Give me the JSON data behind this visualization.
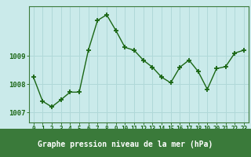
{
  "x": [
    0,
    1,
    2,
    3,
    4,
    5,
    6,
    7,
    8,
    9,
    10,
    11,
    12,
    13,
    14,
    15,
    16,
    17,
    18,
    19,
    20,
    21,
    22,
    23
  ],
  "y": [
    1008.25,
    1007.4,
    1007.2,
    1007.45,
    1007.72,
    1007.72,
    1009.2,
    1010.25,
    1010.45,
    1009.9,
    1009.3,
    1009.2,
    1008.85,
    1008.6,
    1008.25,
    1008.05,
    1008.6,
    1008.85,
    1008.45,
    1007.82,
    1008.55,
    1008.62,
    1009.1,
    1009.2
  ],
  "line_color": "#1a6614",
  "marker": "+",
  "marker_size": 4,
  "marker_linewidth": 1.3,
  "line_width": 1.0,
  "bg_color": "#caeaea",
  "grid_color": "#b0d8d8",
  "border_color": "#3a7a3a",
  "xlabel": "Graphe pression niveau de la mer (hPa)",
  "xlabel_color": "#1a5010",
  "xlabel_fontsize": 7.0,
  "tick_color": "#1a6614",
  "ytick_fontsize": 6.5,
  "xtick_fontsize": 5.5,
  "yticks": [
    1007,
    1008,
    1009
  ],
  "ylim": [
    1006.65,
    1010.75
  ],
  "xlim": [
    -0.5,
    23.5
  ],
  "xticks": [
    0,
    1,
    2,
    3,
    4,
    5,
    6,
    7,
    8,
    9,
    10,
    11,
    12,
    13,
    14,
    15,
    16,
    17,
    18,
    19,
    20,
    21,
    22,
    23
  ],
  "bottom_bar_color": "#3a7a3a",
  "bottom_bar_height": 0.18
}
